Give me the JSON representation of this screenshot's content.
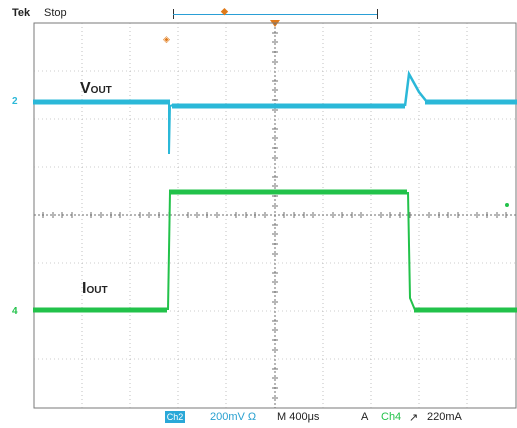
{
  "header": {
    "brand": "Tek",
    "state": "Stop"
  },
  "channels": {
    "ch2_marker": "2",
    "ch4_marker": "4"
  },
  "labels": {
    "vout_main": "V",
    "vout_sub": "OUT",
    "iout_main": "I",
    "iout_sub": "OUT"
  },
  "status": {
    "ch2_box": "Ch2",
    "vdiv": "200mV",
    "omega": "Ω",
    "timebase": "M 400μs",
    "trigger_source": "A",
    "trigger_ch": "Ch4",
    "slope": "↗",
    "trigger_level": "220mA"
  },
  "colors": {
    "ch2": "#2bb8d8",
    "ch4": "#22c24a",
    "grid": "#7a7a7a",
    "marker": "#e07a1a"
  }
}
